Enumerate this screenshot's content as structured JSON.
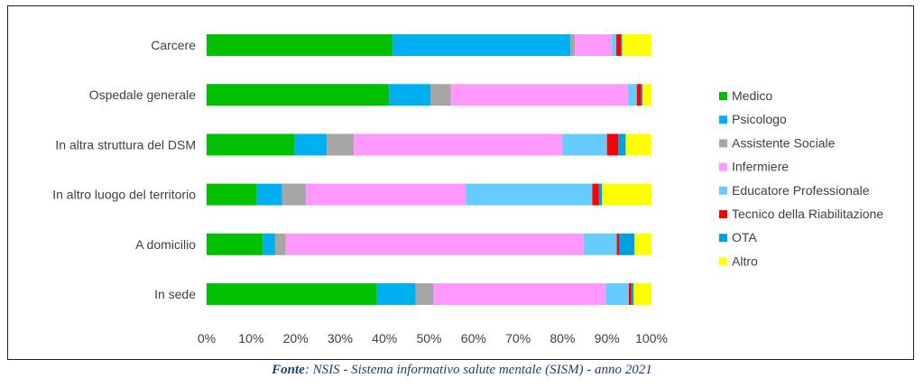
{
  "caption": {
    "label": "Fonte",
    "text": ": NSIS - Sistema informativo salute mentale (SISM) - anno 2021"
  },
  "chart_data": {
    "type": "bar",
    "orientation": "horizontal",
    "stacked": "percent",
    "categories": [
      "Carcere",
      "Ospedale generale",
      "In altra struttura del DSM",
      "In altro luogo del territorio",
      "A domicilio",
      "In sede"
    ],
    "x_ticks": [
      "0%",
      "10%",
      "20%",
      "30%",
      "40%",
      "50%",
      "60%",
      "70%",
      "80%",
      "90%",
      "100%"
    ],
    "xlim": [
      0,
      100
    ],
    "grid": false,
    "legend_position": "right",
    "series": [
      {
        "name": "Medico",
        "color": "#00c000",
        "values": [
          41.8,
          41.0,
          19.8,
          11.3,
          12.6,
          38.3
        ]
      },
      {
        "name": "Psicologo",
        "color": "#00b0f0",
        "values": [
          40.0,
          9.3,
          7.2,
          5.7,
          2.8,
          8.7
        ]
      },
      {
        "name": "Assistente Sociale",
        "color": "#a6a6a6",
        "values": [
          1.0,
          4.6,
          6.1,
          5.3,
          2.4,
          4.0
        ]
      },
      {
        "name": "Infermiere",
        "color": "#ff99ff",
        "values": [
          8.3,
          39.8,
          46.9,
          36.0,
          67.0,
          38.7
        ]
      },
      {
        "name": "Educatore Professionale",
        "color": "#66ccff",
        "values": [
          1.0,
          2.0,
          10.0,
          28.4,
          7.4,
          5.2
        ]
      },
      {
        "name": "Tecnico della Riabilitazione",
        "color": "#ff0000",
        "values": [
          1.0,
          1.0,
          2.5,
          1.5,
          0.5,
          0.6
        ]
      },
      {
        "name": "OTA",
        "color": "#00a0e0",
        "values": [
          0.3,
          0.3,
          1.7,
          0.7,
          3.5,
          0.5
        ]
      },
      {
        "name": "Altro",
        "color": "#ffff00",
        "values": [
          6.6,
          2.0,
          5.8,
          11.1,
          3.8,
          4.0
        ]
      }
    ]
  }
}
